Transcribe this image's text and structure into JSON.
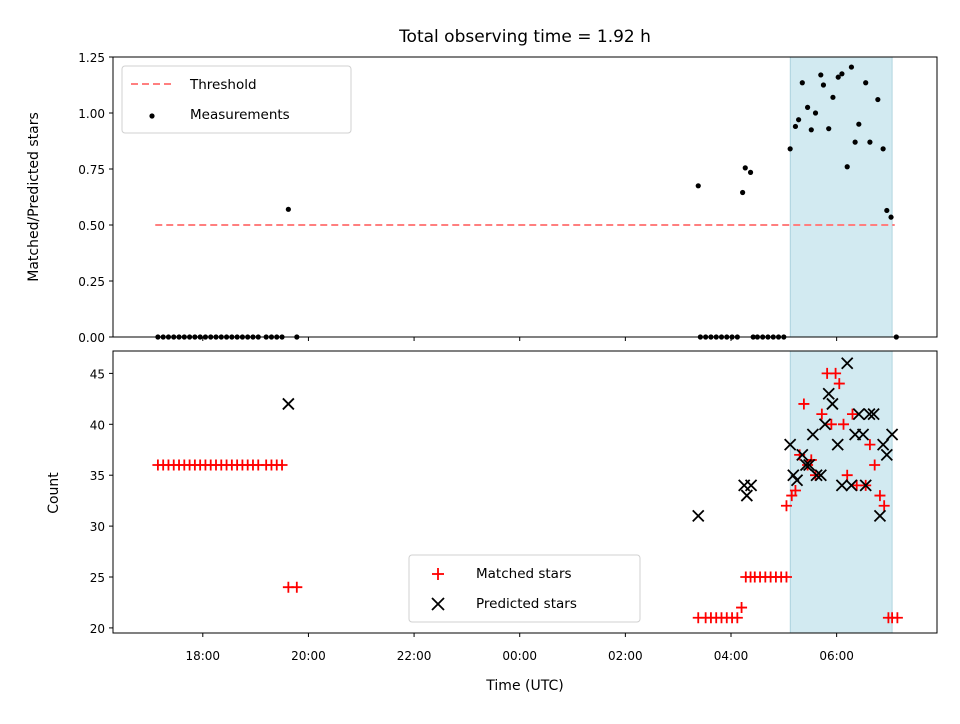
{
  "chart_data": {
    "title": "Total observing time = 1.92 h",
    "xlabel": "Time (UTC)",
    "x_unit": "hours relative to 00:00 UTC (negative = previous day)",
    "x_tick_labels": [
      "18:00",
      "20:00",
      "22:00",
      "00:00",
      "02:00",
      "04:00",
      "06:00"
    ],
    "xlim": [
      -7.7,
      7.9
    ],
    "shaded_interval": {
      "x": [
        5.12,
        7.05
      ],
      "color": "#add8e6"
    },
    "panels": [
      {
        "type": "scatter",
        "name": "top",
        "ylabel": "Matched/Predicted stars",
        "ylim": [
          0,
          1.25
        ],
        "yticks": [
          "0.00",
          "0.25",
          "0.50",
          "0.75",
          "1.00",
          "1.25"
        ],
        "legend": {
          "position": "top-left",
          "entries": [
            "Threshold",
            "Measurements"
          ]
        },
        "threshold": {
          "name": "Threshold",
          "y": 0.5,
          "x_range": [
            -6.9,
            7.1
          ],
          "color": "#ff7f7f",
          "style": "dashed"
        },
        "measurements": {
          "name": "Measurements",
          "color": "#000000",
          "x": [
            -6.85,
            -6.75,
            -6.65,
            -6.55,
            -6.45,
            -6.35,
            -6.25,
            -6.15,
            -6.05,
            -5.95,
            -5.85,
            -5.75,
            -5.65,
            -5.55,
            -5.45,
            -5.35,
            -5.25,
            -5.15,
            -5.05,
            -4.95,
            -4.8,
            -4.7,
            -4.6,
            -4.5,
            -4.38,
            -4.22,
            3.38,
            3.42,
            3.52,
            3.62,
            3.72,
            3.82,
            3.92,
            4.02,
            4.12,
            4.22,
            4.27,
            4.37,
            4.42,
            4.5,
            4.6,
            4.7,
            4.8,
            4.9,
            5.0,
            5.12,
            5.22,
            5.28,
            5.35,
            5.45,
            5.52,
            5.6,
            5.7,
            5.75,
            5.85,
            5.93,
            6.03,
            6.1,
            6.2,
            6.28,
            6.35,
            6.42,
            6.55,
            6.63,
            6.78,
            6.88,
            6.95,
            7.03,
            7.13
          ],
          "y": [
            0,
            0,
            0,
            0,
            0,
            0,
            0,
            0,
            0,
            0,
            0,
            0,
            0,
            0,
            0,
            0,
            0,
            0,
            0,
            0,
            0,
            0,
            0,
            0,
            0.57,
            0,
            0.675,
            0,
            0,
            0,
            0,
            0,
            0,
            0,
            0,
            0.645,
            0.755,
            0.735,
            0,
            0,
            0,
            0,
            0,
            0,
            0,
            0.84,
            0.94,
            0.97,
            1.135,
            1.025,
            0.925,
            1.0,
            1.17,
            1.125,
            0.93,
            1.07,
            1.16,
            1.175,
            0.76,
            1.205,
            0.87,
            0.95,
            1.135,
            0.87,
            1.06,
            0.84,
            0.565,
            0.535,
            0
          ]
        }
      },
      {
        "type": "scatter",
        "name": "bottom",
        "ylabel": "Count",
        "ylim": [
          19.5,
          47.2
        ],
        "yticks": [
          "20",
          "25",
          "30",
          "35",
          "40",
          "45"
        ],
        "legend": {
          "position": "lower-center",
          "entries": [
            "Matched stars",
            "Predicted stars"
          ]
        },
        "series": [
          {
            "name": "Matched stars",
            "marker": "plus",
            "color": "#ff0000",
            "x": [
              -6.85,
              -6.75,
              -6.65,
              -6.55,
              -6.45,
              -6.35,
              -6.25,
              -6.15,
              -6.05,
              -5.95,
              -5.85,
              -5.75,
              -5.65,
              -5.55,
              -5.45,
              -5.35,
              -5.25,
              -5.15,
              -5.05,
              -4.95,
              -4.8,
              -4.7,
              -4.6,
              -4.5,
              -4.38,
              -4.22,
              3.38,
              3.52,
              3.62,
              3.72,
              3.82,
              3.92,
              4.02,
              4.12,
              4.2,
              4.28,
              4.37,
              4.45,
              4.55,
              4.65,
              4.75,
              4.85,
              4.95,
              5.05,
              5.05,
              5.15,
              5.22,
              5.3,
              5.38,
              5.45,
              5.52,
              5.6,
              5.72,
              5.82,
              5.9,
              5.98,
              6.05,
              6.13,
              6.2,
              6.3,
              6.38,
              6.55,
              6.63,
              6.72,
              6.82,
              6.9,
              6.98,
              7.05,
              7.15
            ],
            "y": [
              36,
              36,
              36,
              36,
              36,
              36,
              36,
              36,
              36,
              36,
              36,
              36,
              36,
              36,
              36,
              36,
              36,
              36,
              36,
              36,
              36,
              36,
              36,
              36,
              24,
              24,
              21,
              21,
              21,
              21,
              21,
              21,
              21,
              21,
              22,
              25,
              25,
              25,
              25,
              25,
              25,
              25,
              25,
              25,
              32,
              33,
              33.5,
              37,
              42,
              36,
              36.5,
              35,
              41,
              45,
              40,
              45,
              44,
              40,
              35,
              41,
              34,
              34,
              38,
              36,
              33,
              32,
              21,
              21,
              21
            ]
          },
          {
            "name": "Predicted stars",
            "marker": "x",
            "color": "#000000",
            "x": [
              -4.38,
              3.38,
              4.25,
              4.3,
              4.38,
              5.12,
              5.18,
              5.25,
              5.35,
              5.42,
              5.48,
              5.55,
              5.62,
              5.7,
              5.78,
              5.85,
              5.92,
              6.02,
              6.1,
              6.2,
              6.28,
              6.35,
              6.42,
              6.5,
              6.55,
              6.62,
              6.7,
              6.82,
              6.88,
              6.95,
              7.05
            ],
            "y": [
              42,
              31,
              34,
              33,
              34,
              38,
              35,
              34.5,
              37,
              36,
              36,
              39,
              35,
              35,
              40,
              43,
              42,
              38,
              34,
              46,
              34,
              39,
              41,
              39,
              34,
              41,
              41,
              31,
              38,
              37,
              39
            ]
          }
        ]
      }
    ]
  }
}
